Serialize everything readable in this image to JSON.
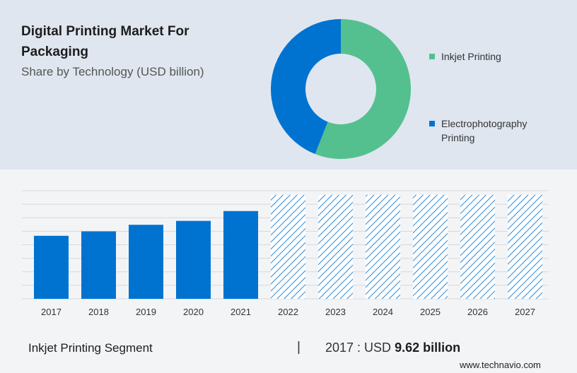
{
  "header": {
    "title": "Digital Printing Market For Packaging",
    "subtitle": "Share by Technology (USD billion)"
  },
  "donut": {
    "segments": [
      {
        "label": "Inkjet Printing",
        "share": 56,
        "color": "#54c08f"
      },
      {
        "label": "Electrophotography Printing",
        "share": 44,
        "color": "#0073d1"
      }
    ]
  },
  "chart_data": {
    "type": "bar",
    "categories": [
      "2017",
      "2018",
      "2019",
      "2020",
      "2021",
      "2022",
      "2023",
      "2024",
      "2025",
      "2026",
      "2027"
    ],
    "series": [
      {
        "values": [
          9.62,
          10.3,
          11.3,
          11.9,
          13.4,
          null,
          null,
          null,
          null,
          null,
          null
        ],
        "color": "#0073d1"
      }
    ],
    "forecast_categories": [
      "2022",
      "2023",
      "2024",
      "2025",
      "2026",
      "2027"
    ],
    "forecast_pattern": "hatched",
    "forecast_color": "#2a8ad8",
    "grid": true,
    "y_axis_labels": false
  },
  "footer": {
    "segment_label": "Inkjet Printing Segment",
    "separator": "|",
    "value_prefix": "2017 : USD",
    "value": "9.62 billion"
  },
  "brand": "www.technavio.com"
}
